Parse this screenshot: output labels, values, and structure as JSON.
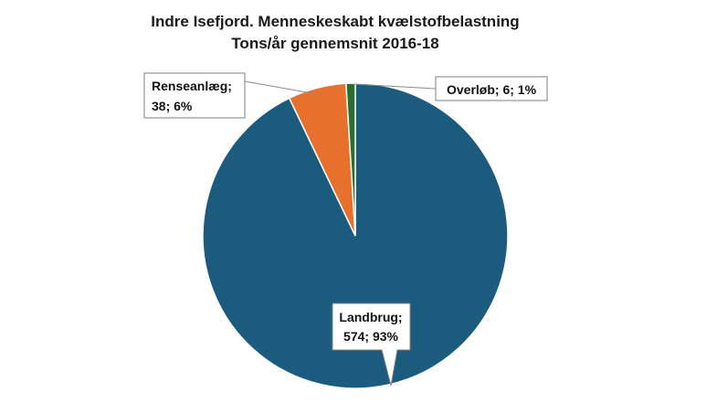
{
  "chart_data": {
    "type": "pie",
    "title": "Indre Isefjord. Menneskeskabt kvælstofbelastning",
    "subtitle": "Tons/år gennemsnit 2016-18",
    "slices": [
      {
        "name": "Landbrug",
        "value": 574,
        "percent": "93%",
        "color": "#1b5b7d",
        "label_lines": [
          "Landbrug;",
          "574; 93%"
        ]
      },
      {
        "name": "Renseanlæg",
        "value": 38,
        "percent": "6%",
        "color": "#e8702d",
        "label_lines": [
          "Renseanlæg;",
          "38; 6%"
        ]
      },
      {
        "name": "Overløb",
        "value": 6,
        "percent": "1%",
        "color": "#2a6e2f",
        "label_lines": [
          "Overløb; 6; 1%"
        ]
      }
    ],
    "legend": "none",
    "start": "top, clockwise"
  }
}
